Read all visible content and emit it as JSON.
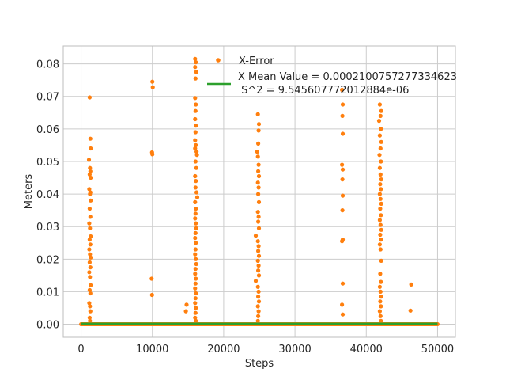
{
  "chart_data": {
    "type": "scatter",
    "title": "",
    "xlabel": "Steps",
    "ylabel": "Meters",
    "xlim": [
      -2500,
      52500
    ],
    "ylim": [
      -0.004,
      0.0855
    ],
    "xticks": [
      0,
      10000,
      20000,
      30000,
      40000,
      50000
    ],
    "xtick_labels": [
      "0",
      "10000",
      "20000",
      "30000",
      "40000",
      "50000"
    ],
    "yticks": [
      0.0,
      0.01,
      0.02,
      0.03,
      0.04,
      0.05,
      0.06,
      0.07,
      0.08
    ],
    "ytick_labels": [
      "0.00",
      "0.01",
      "0.02",
      "0.03",
      "0.04",
      "0.05",
      "0.06",
      "0.07",
      "0.08"
    ],
    "grid": true,
    "legend_position": "top-right",
    "colors": {
      "error": "#ff7f0e",
      "mean": "#2ca02c",
      "grid": "#cccccc",
      "axes": "#bdbdbd"
    },
    "series": [
      {
        "name": "X-Error",
        "kind": "scatter",
        "points": [
          [
            1200,
            0.0697
          ],
          [
            1300,
            0.057
          ],
          [
            1350,
            0.054
          ],
          [
            1100,
            0.0505
          ],
          [
            1250,
            0.048
          ],
          [
            1300,
            0.047
          ],
          [
            1200,
            0.046
          ],
          [
            1350,
            0.045
          ],
          [
            1150,
            0.0415
          ],
          [
            1300,
            0.0405
          ],
          [
            1250,
            0.04
          ],
          [
            1350,
            0.038
          ],
          [
            1200,
            0.0355
          ],
          [
            1300,
            0.033
          ],
          [
            1150,
            0.031
          ],
          [
            1250,
            0.0295
          ],
          [
            1350,
            0.027
          ],
          [
            1200,
            0.026
          ],
          [
            1300,
            0.0245
          ],
          [
            1150,
            0.023
          ],
          [
            1250,
            0.0215
          ],
          [
            1350,
            0.0205
          ],
          [
            1200,
            0.019
          ],
          [
            1300,
            0.0175
          ],
          [
            1150,
            0.016
          ],
          [
            1250,
            0.0145
          ],
          [
            1350,
            0.012
          ],
          [
            1200,
            0.0105
          ],
          [
            1300,
            0.0095
          ],
          [
            1150,
            0.0065
          ],
          [
            1250,
            0.0055
          ],
          [
            1300,
            0.004
          ],
          [
            1200,
            0.002
          ],
          [
            1250,
            0.001
          ],
          [
            10000,
            0.0745
          ],
          [
            10050,
            0.0728
          ],
          [
            9950,
            0.0528
          ],
          [
            10000,
            0.0522
          ],
          [
            9900,
            0.014
          ],
          [
            9950,
            0.009
          ],
          [
            14800,
            0.006
          ],
          [
            14700,
            0.004
          ],
          [
            16000,
            0.0815
          ],
          [
            16100,
            0.0805
          ],
          [
            16000,
            0.079
          ],
          [
            16150,
            0.0775
          ],
          [
            16050,
            0.0755
          ],
          [
            16000,
            0.0695
          ],
          [
            16100,
            0.0675
          ],
          [
            16050,
            0.0655
          ],
          [
            16000,
            0.063
          ],
          [
            16100,
            0.061
          ],
          [
            16050,
            0.059
          ],
          [
            16000,
            0.0565
          ],
          [
            16100,
            0.055
          ],
          [
            16000,
            0.054
          ],
          [
            16200,
            0.053
          ],
          [
            16250,
            0.052
          ],
          [
            16050,
            0.05
          ],
          [
            16150,
            0.048
          ],
          [
            16000,
            0.0455
          ],
          [
            16100,
            0.044
          ],
          [
            16050,
            0.042
          ],
          [
            16200,
            0.0405
          ],
          [
            16300,
            0.039
          ],
          [
            16000,
            0.0375
          ],
          [
            16100,
            0.0355
          ],
          [
            16050,
            0.034
          ],
          [
            16000,
            0.0325
          ],
          [
            16100,
            0.031
          ],
          [
            16150,
            0.0295
          ],
          [
            16050,
            0.028
          ],
          [
            16000,
            0.0265
          ],
          [
            16100,
            0.025
          ],
          [
            16050,
            0.023
          ],
          [
            16000,
            0.0215
          ],
          [
            16100,
            0.02
          ],
          [
            16150,
            0.0185
          ],
          [
            16050,
            0.017
          ],
          [
            16000,
            0.0155
          ],
          [
            16100,
            0.014
          ],
          [
            16050,
            0.0125
          ],
          [
            16000,
            0.011
          ],
          [
            16100,
            0.0095
          ],
          [
            16050,
            0.008
          ],
          [
            16000,
            0.0065
          ],
          [
            16100,
            0.005
          ],
          [
            16050,
            0.0035
          ],
          [
            16000,
            0.002
          ],
          [
            16100,
            0.001
          ],
          [
            24800,
            0.0645
          ],
          [
            24950,
            0.0615
          ],
          [
            24900,
            0.0595
          ],
          [
            24850,
            0.0555
          ],
          [
            24700,
            0.053
          ],
          [
            24800,
            0.0515
          ],
          [
            24900,
            0.049
          ],
          [
            24850,
            0.047
          ],
          [
            24950,
            0.0455
          ],
          [
            24800,
            0.0435
          ],
          [
            24900,
            0.042
          ],
          [
            24850,
            0.04
          ],
          [
            24950,
            0.0375
          ],
          [
            24800,
            0.0345
          ],
          [
            24900,
            0.033
          ],
          [
            24850,
            0.0315
          ],
          [
            24950,
            0.0295
          ],
          [
            24500,
            0.0272
          ],
          [
            24800,
            0.0255
          ],
          [
            24900,
            0.024
          ],
          [
            24850,
            0.0225
          ],
          [
            24950,
            0.021
          ],
          [
            24800,
            0.0195
          ],
          [
            24900,
            0.018
          ],
          [
            24850,
            0.0165
          ],
          [
            24950,
            0.015
          ],
          [
            24500,
            0.0133
          ],
          [
            24800,
            0.0115
          ],
          [
            24900,
            0.01
          ],
          [
            24850,
            0.0085
          ],
          [
            24950,
            0.007
          ],
          [
            24800,
            0.0055
          ],
          [
            24900,
            0.004
          ],
          [
            24850,
            0.0025
          ],
          [
            24800,
            0.001
          ],
          [
            36600,
            0.072
          ],
          [
            36700,
            0.0675
          ],
          [
            36650,
            0.064
          ],
          [
            36700,
            0.0585
          ],
          [
            36600,
            0.049
          ],
          [
            36700,
            0.0475
          ],
          [
            36650,
            0.0445
          ],
          [
            36700,
            0.0395
          ],
          [
            36650,
            0.035
          ],
          [
            36700,
            0.026
          ],
          [
            36600,
            0.0255
          ],
          [
            36700,
            0.0125
          ],
          [
            36600,
            0.006
          ],
          [
            36700,
            0.003
          ],
          [
            41900,
            0.0675
          ],
          [
            42100,
            0.0655
          ],
          [
            42000,
            0.064
          ],
          [
            41800,
            0.0625
          ],
          [
            42050,
            0.06
          ],
          [
            41900,
            0.058
          ],
          [
            42100,
            0.056
          ],
          [
            42000,
            0.054
          ],
          [
            41850,
            0.052
          ],
          [
            42050,
            0.05
          ],
          [
            41900,
            0.048
          ],
          [
            42000,
            0.046
          ],
          [
            42100,
            0.0445
          ],
          [
            41950,
            0.043
          ],
          [
            42050,
            0.0415
          ],
          [
            41900,
            0.04
          ],
          [
            42000,
            0.0385
          ],
          [
            42100,
            0.037
          ],
          [
            41950,
            0.0355
          ],
          [
            42050,
            0.0335
          ],
          [
            41900,
            0.032
          ],
          [
            42000,
            0.0305
          ],
          [
            42100,
            0.029
          ],
          [
            41950,
            0.0275
          ],
          [
            42050,
            0.026
          ],
          [
            41900,
            0.0245
          ],
          [
            42000,
            0.023
          ],
          [
            42100,
            0.0195
          ],
          [
            41950,
            0.0155
          ],
          [
            42050,
            0.013
          ],
          [
            41900,
            0.0115
          ],
          [
            42000,
            0.01
          ],
          [
            42100,
            0.0085
          ],
          [
            41950,
            0.007
          ],
          [
            42050,
            0.0055
          ],
          [
            41900,
            0.004
          ],
          [
            42000,
            0.0025
          ],
          [
            42050,
            0.001
          ],
          [
            46300,
            0.0122
          ],
          [
            46200,
            0.0042
          ]
        ]
      },
      {
        "name": "X Mean Value = 0.0002100757277334623\n S^2 = 9.545607772012884e-06",
        "kind": "line",
        "value": 0.00021,
        "x_range": [
          0,
          50000
        ]
      }
    ],
    "legend": {
      "error_label": "X-Error",
      "mean_label_line1": "X Mean Value = 0.0002100757277334623",
      "mean_label_line2": " S^2 = 9.545607772012884e-06"
    }
  }
}
